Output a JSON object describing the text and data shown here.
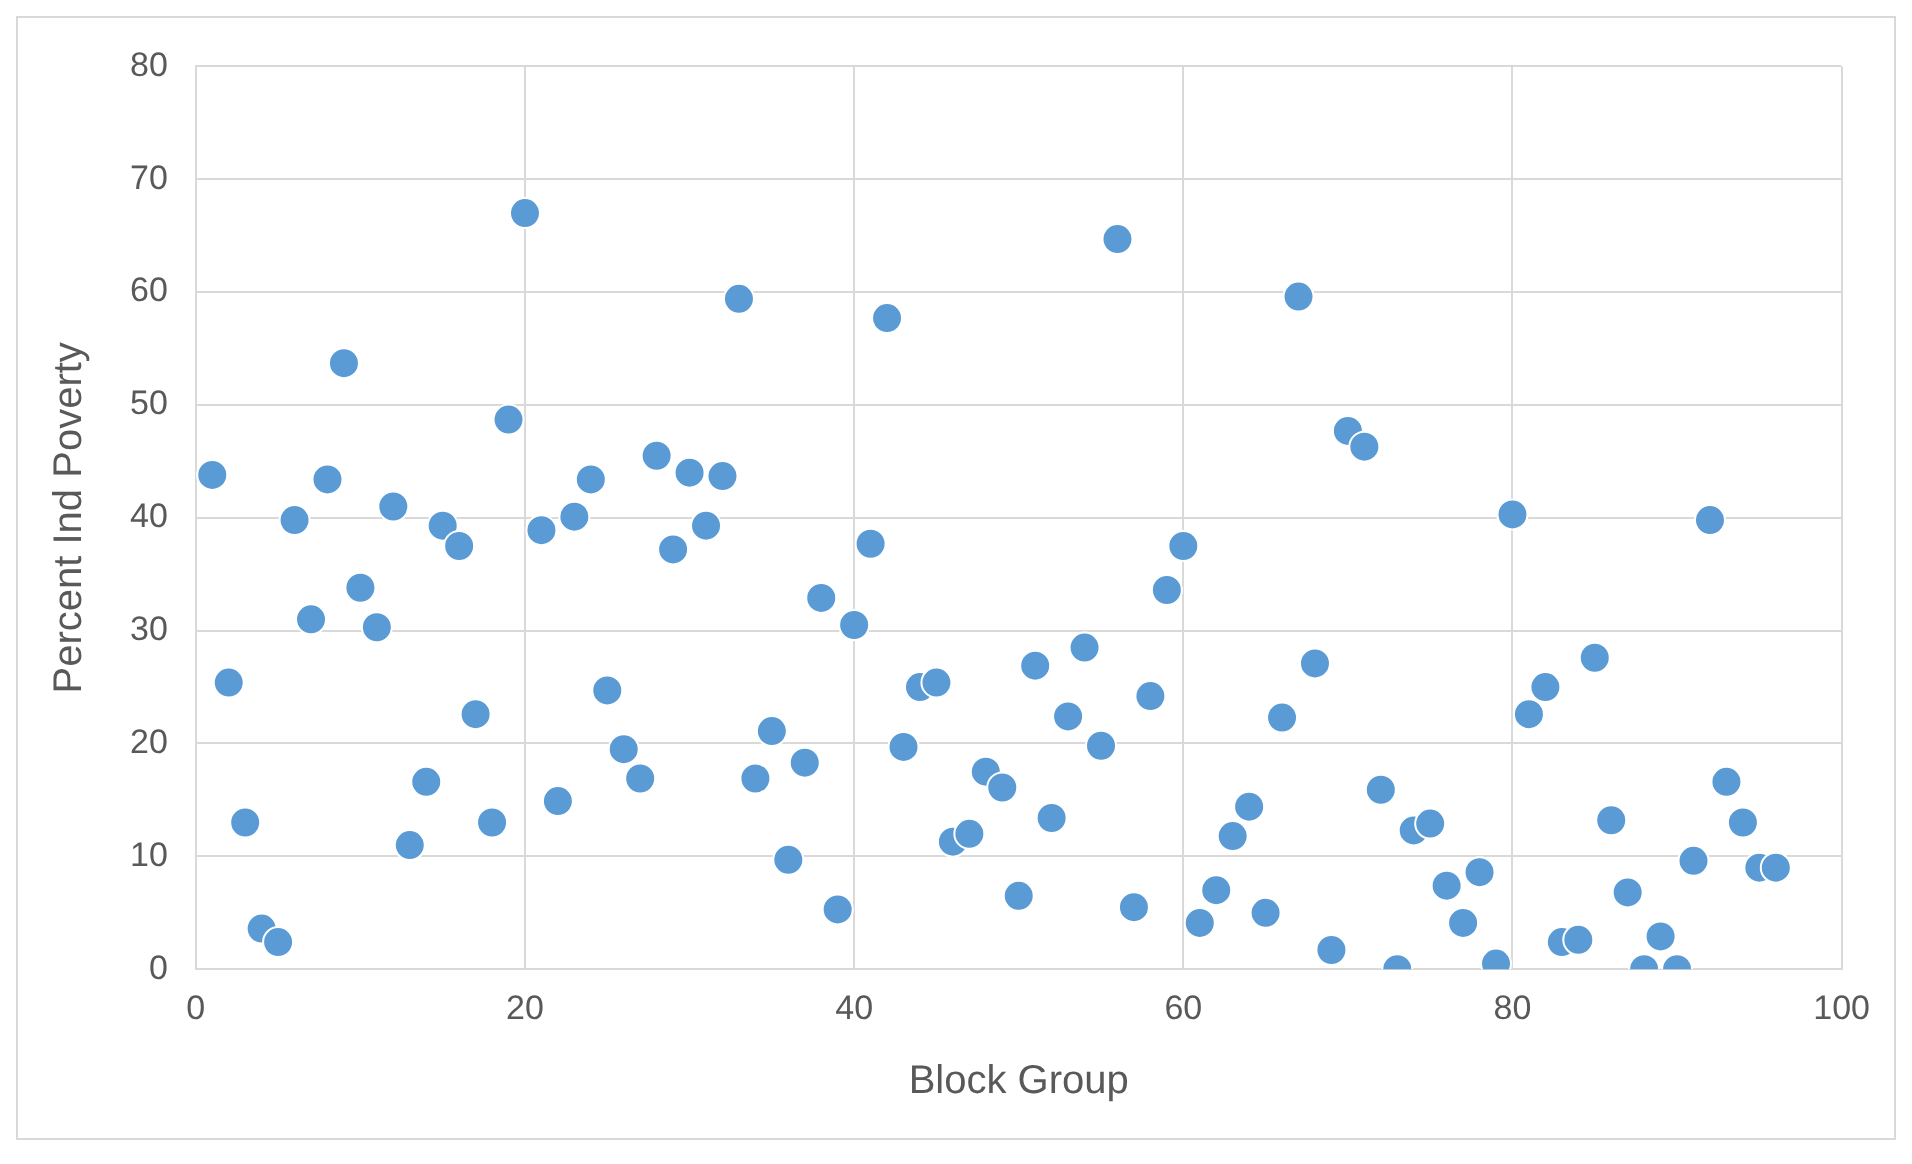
{
  "chart_data": {
    "type": "scatter",
    "xlabel": "Block Group",
    "ylabel": "Percent Ind Poverty",
    "x": [
      1,
      2,
      3,
      4,
      5,
      6,
      7,
      8,
      9,
      10,
      11,
      12,
      13,
      14,
      15,
      16,
      17,
      18,
      19,
      20,
      21,
      22,
      23,
      24,
      25,
      26,
      27,
      28,
      29,
      30,
      31,
      32,
      33,
      34,
      35,
      36,
      37,
      38,
      39,
      40,
      41,
      42,
      43,
      44,
      45,
      46,
      47,
      48,
      49,
      50,
      51,
      52,
      53,
      54,
      55,
      56,
      57,
      58,
      59,
      60,
      61,
      62,
      63,
      64,
      65,
      66,
      67,
      68,
      69,
      70,
      71,
      72,
      73,
      74,
      75,
      76,
      77,
      78,
      79,
      80,
      81,
      82,
      83,
      84,
      85,
      86,
      87,
      88,
      89,
      90,
      91,
      92,
      93,
      94,
      95,
      96
    ],
    "series": [
      {
        "color": "#5b9bd5",
        "values": [
          43.8,
          25.4,
          13,
          3.6,
          2.4,
          39.8,
          31,
          43.4,
          53.7,
          33.8,
          30.3,
          41,
          11,
          16.6,
          39.3,
          37.5,
          22.6,
          13,
          48.7,
          67,
          38.9,
          14.9,
          40.1,
          43.4,
          24.7,
          19.5,
          16.9,
          45.5,
          37.2,
          44,
          39.3,
          43.7,
          59.4,
          16.9,
          21.1,
          9.7,
          18.3,
          32.9,
          5.3,
          30.5,
          37.7,
          57.7,
          19.7,
          25,
          25.4,
          11.3,
          12,
          17.5,
          16.1,
          6.5,
          26.9,
          13.4,
          22.4,
          28.5,
          19.8,
          64.7,
          5.5,
          24.2,
          33.6,
          37.5,
          4.1,
          7,
          11.8,
          14.4,
          5,
          22.3,
          59.6,
          27.1,
          1.7,
          47.7,
          46.3,
          15.9,
          0,
          12.3,
          12.9,
          7.4,
          4.1,
          8.6,
          0.5,
          40.3,
          22.6,
          25,
          2.4,
          2.6,
          27.6,
          13.2,
          6.8,
          0,
          2.9,
          0,
          9.6,
          39.8,
          16.6,
          13,
          9,
          9
        ]
      }
    ],
    "xlim": [
      0,
      100
    ],
    "xticks": [
      0,
      20,
      40,
      60,
      80,
      100
    ],
    "ylim": [
      0,
      80
    ],
    "yticks": [
      0,
      10,
      20,
      30,
      40,
      50,
      60,
      70,
      80
    ],
    "grid": true,
    "legend": false,
    "marker": "circle"
  }
}
